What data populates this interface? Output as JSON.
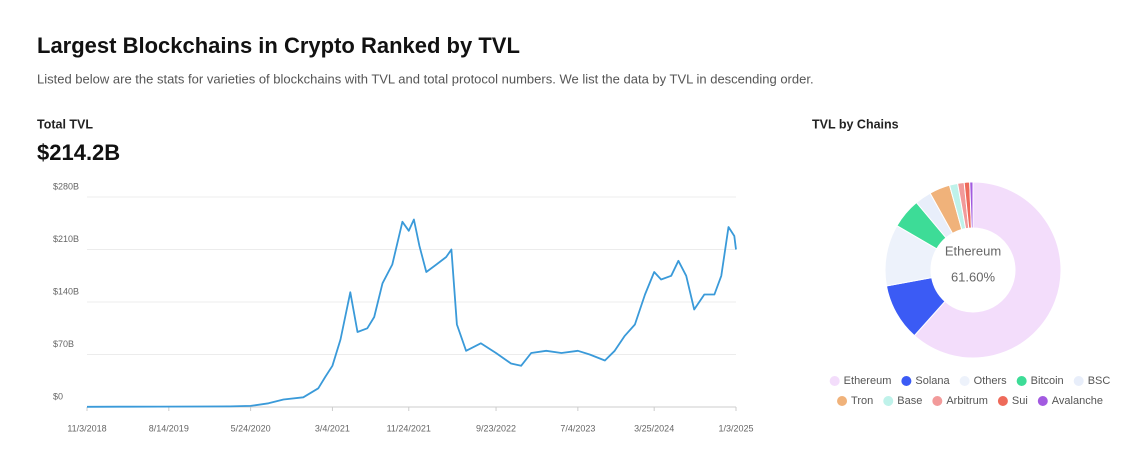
{
  "header": {
    "title": "Largest Blockchains in Crypto Ranked by TVL",
    "subtitle": "Listed below are the stats for varieties of blockchains with TVL and total protocol numbers. We list the data by TVL in descending order."
  },
  "total_tvl": {
    "label": "Total TVL",
    "value": "$214.2B"
  },
  "chart_data": [
    {
      "type": "line",
      "color": "#3a9ad9",
      "grid": true,
      "x": [
        "2018-11-03",
        "2019-02-26",
        "2019-07-17",
        "2019-11-30",
        "2020-03-13",
        "2020-05-24",
        "2020-07-25",
        "2020-09-15",
        "2020-11-23",
        "2021-01-14",
        "2021-02-07",
        "2021-03-04",
        "2021-04-01",
        "2021-05-05",
        "2021-05-30",
        "2021-07-03",
        "2021-07-27",
        "2021-08-25",
        "2021-09-28",
        "2021-11-02",
        "2021-11-24",
        "2021-12-12",
        "2021-12-31",
        "2022-01-24",
        "2022-02-28",
        "2022-04-03",
        "2022-04-21",
        "2022-05-10",
        "2022-06-11",
        "2022-08-01",
        "2022-09-23",
        "2022-11-14",
        "2022-12-19",
        "2023-01-23",
        "2023-03-16",
        "2023-05-08",
        "2023-07-04",
        "2023-08-14",
        "2023-10-06",
        "2023-11-09",
        "2023-12-14",
        "2024-01-18",
        "2024-02-22",
        "2024-03-25",
        "2024-04-18",
        "2024-05-23",
        "2024-06-17",
        "2024-07-14",
        "2024-08-11",
        "2024-09-15",
        "2024-10-20",
        "2024-11-13",
        "2024-12-08",
        "2024-12-28",
        "2025-01-03"
      ],
      "values": [
        0.3,
        0.4,
        0.6,
        0.7,
        0.8,
        1.5,
        5,
        10,
        13,
        25,
        40,
        55,
        90,
        153,
        100,
        105,
        120,
        165,
        190,
        247,
        235,
        250,
        215,
        180,
        190,
        200,
        210,
        110,
        75,
        85,
        72,
        58,
        55,
        72,
        75,
        72,
        75,
        70,
        62,
        75,
        95,
        110,
        150,
        180,
        170,
        175,
        195,
        175,
        130,
        150,
        150,
        175,
        240,
        228,
        210
      ],
      "xlim": [
        "2018-11-03",
        "2025-01-03"
      ],
      "xticks": [
        {
          "value": "2018-11-03",
          "label": "11/3/2018"
        },
        {
          "value": "2019-08-14",
          "label": "8/14/2019"
        },
        {
          "value": "2020-05-24",
          "label": "5/24/2020"
        },
        {
          "value": "2021-03-04",
          "label": "3/4/2021"
        },
        {
          "value": "2021-11-24",
          "label": "11/24/2021"
        },
        {
          "value": "2022-09-23",
          "label": "9/23/2022"
        },
        {
          "value": "2023-07-04",
          "label": "7/4/2023"
        },
        {
          "value": "2024-03-25",
          "label": "3/25/2024"
        },
        {
          "value": "2025-01-03",
          "label": "1/3/2025"
        }
      ],
      "ylim": [
        0,
        280
      ],
      "yticks": [
        {
          "value": 0,
          "label": "$0"
        },
        {
          "value": 70,
          "label": "$70B"
        },
        {
          "value": 140,
          "label": "$140B"
        },
        {
          "value": 210,
          "label": "$210B"
        },
        {
          "value": 280,
          "label": "$280B"
        }
      ]
    },
    {
      "type": "donut",
      "title": "TVL by Chains",
      "categories": [
        "Ethereum",
        "Solana",
        "Others",
        "Bitcoin",
        "BSC",
        "Tron",
        "Base",
        "Arbitrum",
        "Sui",
        "Avalanche"
      ],
      "values": [
        61.6,
        10.5,
        11.3,
        5.5,
        3.0,
        3.8,
        1.5,
        1.2,
        1.0,
        0.6
      ],
      "value_labels": [
        "61.60%",
        null,
        null,
        null,
        null,
        null,
        null,
        null,
        null,
        null
      ],
      "colors": [
        "#f3ddfb",
        "#3b5bf5",
        "#edf2fb",
        "#3ddc97",
        "#e8eefa",
        "#f0b27a",
        "#bff2ea",
        "#f29a9a",
        "#ee6a5a",
        "#a25ae0"
      ]
    }
  ]
}
